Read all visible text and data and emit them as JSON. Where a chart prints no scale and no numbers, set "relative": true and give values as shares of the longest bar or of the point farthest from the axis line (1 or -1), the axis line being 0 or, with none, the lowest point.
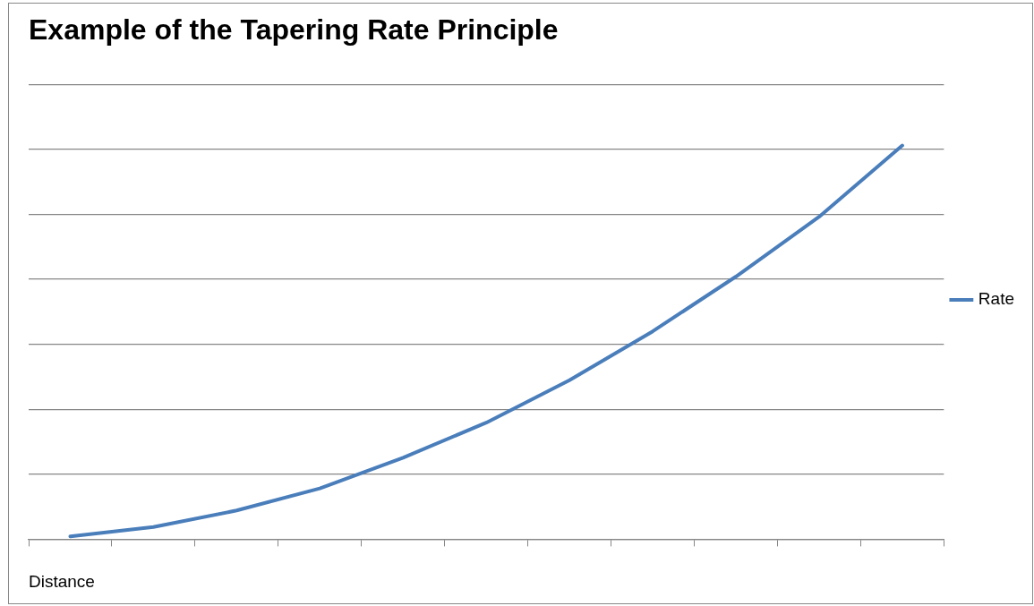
{
  "chart_data": {
    "type": "line",
    "title": "Example of the Tapering Rate Principle",
    "xlabel": "Distance",
    "categories": [
      null,
      null,
      null,
      null,
      null,
      null,
      null,
      null,
      null,
      null,
      null
    ],
    "series": [
      {
        "name": "Rate",
        "color": "#4a7ebb",
        "values": [
          0.007,
          0.031,
          0.073,
          0.129,
          0.207,
          0.296,
          0.404,
          0.528,
          0.667,
          0.819,
          1
        ]
      }
    ],
    "relative": true,
    "grid": "y",
    "legend": "right",
    "marker": "none",
    "line_style": "solid"
  }
}
